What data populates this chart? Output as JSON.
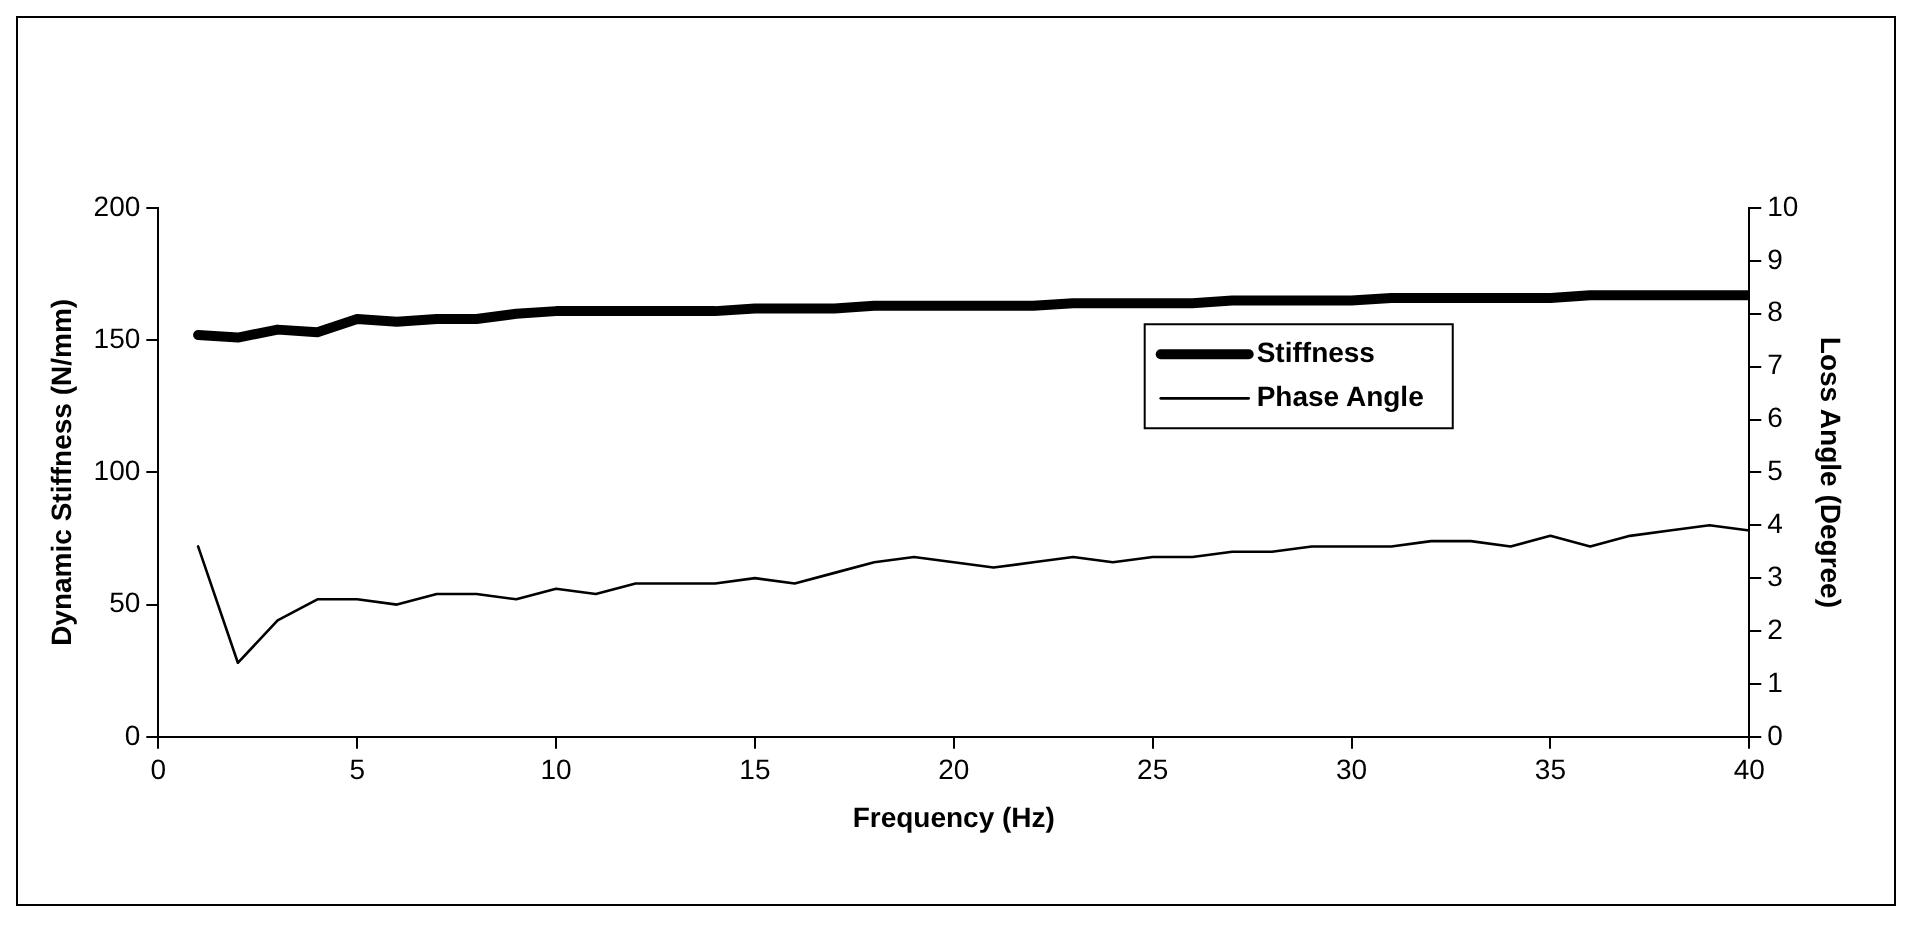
{
  "chart_data": {
    "type": "line",
    "xlabel": "Frequency (Hz)",
    "ylabel": "Dynamic Stiffness (N/mm)",
    "y2label": "Loss Angle (Degree)",
    "x": [
      1,
      2,
      3,
      4,
      5,
      6,
      7,
      8,
      9,
      10,
      11,
      12,
      13,
      14,
      15,
      16,
      17,
      18,
      19,
      20,
      21,
      22,
      23,
      24,
      25,
      26,
      27,
      28,
      29,
      30,
      31,
      32,
      33,
      34,
      35,
      36,
      37,
      38,
      39,
      40
    ],
    "series": [
      {
        "name": "Stiffness",
        "color": "#000000",
        "values": [
          152,
          151,
          154,
          153,
          158,
          157,
          158,
          158,
          160,
          161,
          161,
          161,
          161,
          161,
          162,
          162,
          162,
          163,
          163,
          163,
          163,
          163,
          164,
          164,
          164,
          164,
          165,
          165,
          165,
          165,
          166,
          166,
          166,
          166,
          166,
          167,
          167,
          167,
          167,
          167
        ]
      },
      {
        "name": "Phase Angle",
        "color": "#000000",
        "axis": "y2",
        "values": [
          3.6,
          1.4,
          2.2,
          2.6,
          2.6,
          2.5,
          2.7,
          2.7,
          2.6,
          2.8,
          2.7,
          2.9,
          2.9,
          2.9,
          3.0,
          2.9,
          3.1,
          3.3,
          3.4,
          3.3,
          3.2,
          3.3,
          3.4,
          3.3,
          3.4,
          3.4,
          3.5,
          3.5,
          3.6,
          3.6,
          3.6,
          3.7,
          3.7,
          3.6,
          3.8,
          3.6,
          3.8,
          3.9,
          4.0,
          3.9
        ]
      }
    ],
    "xlim": [
      0,
      40
    ],
    "xticks": [
      0,
      5,
      10,
      15,
      20,
      25,
      30,
      35,
      40
    ],
    "ylim": [
      0,
      200
    ],
    "yticks": [
      0,
      50,
      100,
      150,
      200
    ],
    "y2lim": [
      0,
      10
    ],
    "y2ticks": [
      0,
      1,
      2,
      3,
      4,
      5,
      6,
      7,
      8,
      9,
      10
    ],
    "grid": false,
    "legend": "right",
    "marker": "none",
    "line_style": "solid"
  }
}
